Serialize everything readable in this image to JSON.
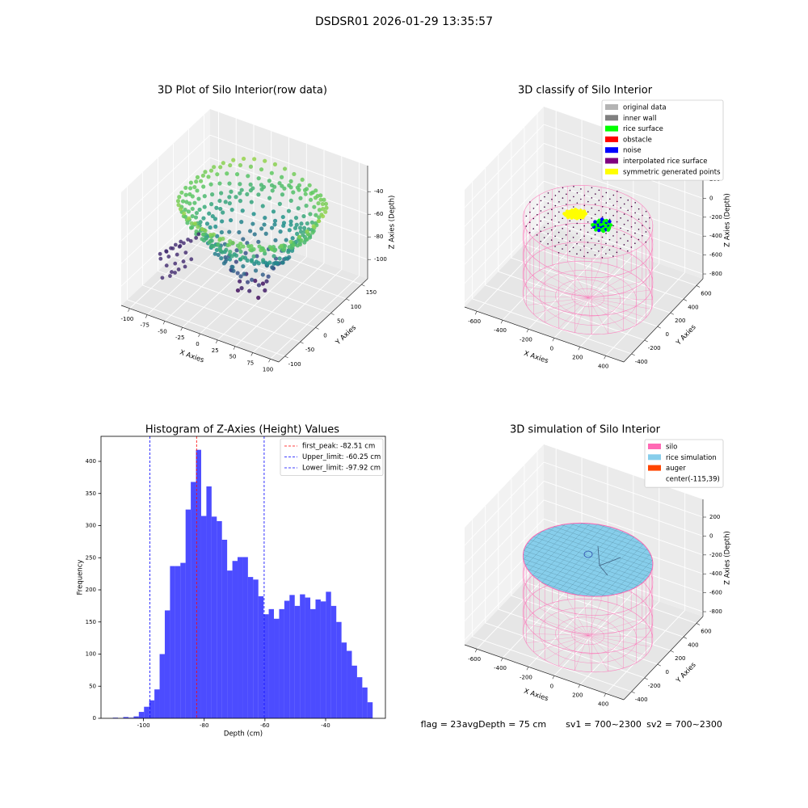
{
  "title": "DSDSR01 2026-01-29 13:35:57",
  "chart_data": [
    {
      "type": "scatter3d",
      "title": "3D Plot of Silo Interior(row data)",
      "xlabel": "X Axies",
      "ylabel": "Y Axies",
      "zlabel": "Z Axies (Depth)",
      "xlim": [
        -112,
        112
      ],
      "ylim": [
        -120,
        170
      ],
      "zlim": [
        -117,
        -17
      ],
      "xticks": [
        -100,
        -75,
        -50,
        -25,
        0,
        25,
        50,
        75,
        100
      ],
      "yticks": [
        -100,
        -50,
        0,
        50,
        100,
        150
      ],
      "zticks": [
        -100,
        -80,
        -60,
        -40
      ]
    },
    {
      "type": "scatter3d",
      "title": "3D classify of Silo Interior",
      "xlabel": "X Axies",
      "ylabel": "Y Axies",
      "zlabel": "Z Axies (Depth)",
      "xlim": [
        -695,
        540
      ],
      "ylim": [
        -520,
        700
      ],
      "zlim": [
        -851,
        388
      ],
      "xticks": [
        -600,
        -400,
        -200,
        0,
        200,
        400
      ],
      "yticks": [
        -400,
        -200,
        0,
        200,
        400,
        600
      ],
      "zticks": [
        -800,
        -600,
        -400,
        -200,
        0,
        200
      ],
      "legend_items": [
        {
          "name": "original data",
          "color": "#b3b3b3"
        },
        {
          "name": "inner wall",
          "color": "#808080"
        },
        {
          "name": "rice surface",
          "color": "#00ff00"
        },
        {
          "name": "obstacle",
          "color": "#ff0000"
        },
        {
          "name": "noise",
          "color": "#0000ff"
        },
        {
          "name": "interpolated rice surface",
          "color": "#800080"
        },
        {
          "name": "symmetric generated points",
          "color": "#ffff00"
        }
      ]
    },
    {
      "type": "histogram",
      "title": "Histogram of Z-Axies (Height) Values",
      "xlabel": "Depth (cm)",
      "ylabel": "Frequency",
      "color": "#0000ff",
      "alpha": 0.7,
      "xlim": [
        -114,
        -20.3
      ],
      "ylim": [
        0,
        439
      ],
      "xticks": [
        -100,
        -80,
        -60,
        -40
      ],
      "yticks": [
        0,
        50,
        100,
        150,
        200,
        250,
        300,
        350,
        400
      ],
      "bins": [
        -110.1,
        -108.39,
        -106.68,
        -104.96,
        -103.25,
        -101.54,
        -99.83,
        -98.12,
        -96.4,
        -94.69,
        -92.98,
        -91.27,
        -89.56,
        -87.84,
        -86.13,
        -84.42,
        -82.71,
        -81.0,
        -79.28,
        -77.57,
        -75.86,
        -74.15,
        -72.44,
        -70.72,
        -69.01,
        -67.3,
        -65.59,
        -63.88,
        -62.16,
        -60.45,
        -58.74,
        -57.03,
        -55.32,
        -53.6,
        -51.89,
        -50.18,
        -48.47,
        -46.76,
        -45.04,
        -43.33,
        -41.62,
        -39.91,
        -38.2,
        -36.48,
        -34.77,
        -33.06,
        -31.35,
        -29.64,
        -27.92,
        -26.21,
        -24.5
      ],
      "counts": [
        1,
        0,
        2,
        1,
        3,
        10,
        18,
        28,
        45,
        100,
        168,
        237,
        237,
        242,
        325,
        368,
        418,
        315,
        361,
        314,
        307,
        278,
        230,
        245,
        251,
        251,
        220,
        216,
        190,
        162,
        170,
        155,
        170,
        183,
        192,
        175,
        193,
        188,
        170,
        185,
        182,
        197,
        175,
        150,
        118,
        105,
        82,
        64,
        48,
        25
      ],
      "vlines": [
        {
          "label": "first_peak: -82.51 cm",
          "value": -82.51,
          "color": "#ff0000"
        },
        {
          "label": "Upper_limit: -60.25 cm",
          "value": -60.25,
          "color": "#0000ff"
        },
        {
          "label": "Lower_limit: -97.92 cm",
          "value": -97.92,
          "color": "#0000ff"
        }
      ]
    },
    {
      "type": "surface3d",
      "title": "3D simulation of Silo Interior",
      "xlabel": "X Axies",
      "ylabel": "Y Axies",
      "zlabel": "Z Axies (Depth)",
      "xlim": [
        -695,
        540
      ],
      "ylim": [
        -520,
        700
      ],
      "zlim": [
        -851,
        388
      ],
      "xticks": [
        -600,
        -400,
        -200,
        0,
        200,
        400
      ],
      "yticks": [
        -400,
        -200,
        0,
        200,
        400,
        600
      ],
      "zticks": [
        -800,
        -600,
        -400,
        -200,
        0,
        200
      ],
      "legend_items": [
        {
          "name": "silo",
          "color": "#ff69b4"
        },
        {
          "name": "rice simulation",
          "color": "#87ceeb"
        },
        {
          "name": "auger",
          "color": "#ff4500"
        },
        {
          "name": "center(-115,39)"
        }
      ]
    }
  ],
  "footer": [
    "flag = 23",
    "avgDepth = 75 cm",
    "sv1 = 700~2300",
    "sv2 = 700~2300"
  ]
}
